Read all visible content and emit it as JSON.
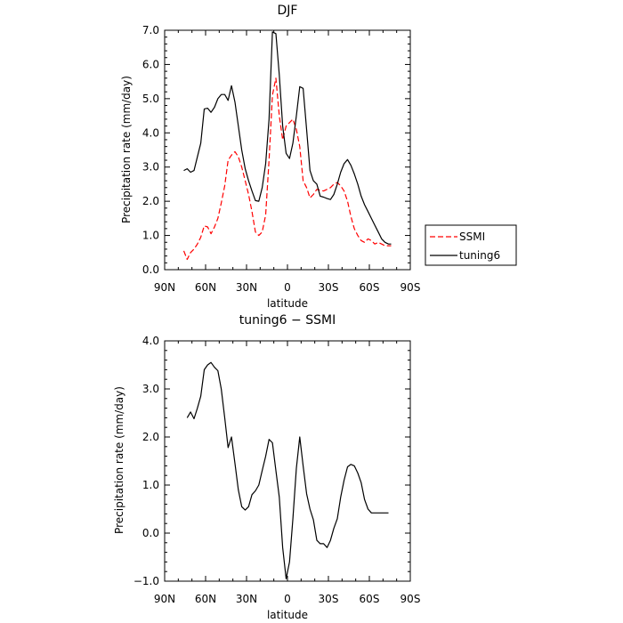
{
  "chart_data": [
    {
      "type": "line",
      "title": "DJF",
      "xlabel": "latitude",
      "ylabel": "Precipitation rate (mm/day)",
      "xlim": [
        90,
        -90
      ],
      "ylim": [
        0,
        7
      ],
      "xticks": [
        90,
        60,
        30,
        0,
        -30,
        -60,
        -90
      ],
      "xtick_labels": [
        "90N",
        "60N",
        "30N",
        "0",
        "30S",
        "60S",
        "90S"
      ],
      "yticks": [
        0,
        1,
        2,
        3,
        4,
        5,
        6,
        7
      ],
      "ytick_labels": [
        "0.0",
        "1.0",
        "2.0",
        "3.0",
        "4.0",
        "5.0",
        "6.0",
        "7.0"
      ],
      "legend_placement": "right-outside",
      "series": [
        {
          "name": "SSMI",
          "color": "#ff0000",
          "style": "dashed",
          "x": [
            76,
            73.5,
            71,
            68.5,
            66,
            63.5,
            61,
            58.5,
            56,
            53.5,
            51,
            48.5,
            46,
            43.5,
            41,
            38.5,
            36,
            33.5,
            31,
            28.5,
            26,
            23.5,
            21,
            18.5,
            16,
            13.5,
            11,
            8.5,
            6,
            3.5,
            1,
            -1.5,
            -4,
            -6.5,
            -9,
            -11.5,
            -14,
            -16.5,
            -19,
            -21.5,
            -24,
            -26.5,
            -29,
            -31.5,
            -34,
            -36.5,
            -39,
            -41.5,
            -44,
            -46.5,
            -49,
            -51.5,
            -54,
            -56.5,
            -59,
            -61.5,
            -64,
            -66.5,
            -69,
            -71.5,
            -74,
            -76
          ],
          "y": [
            0.55,
            0.3,
            0.5,
            0.6,
            0.75,
            0.95,
            1.28,
            1.25,
            1.05,
            1.25,
            1.5,
            1.95,
            2.45,
            3.2,
            3.35,
            3.45,
            3.3,
            3.0,
            2.6,
            2.2,
            1.7,
            1.1,
            1.0,
            1.1,
            1.6,
            3.2,
            5.1,
            5.6,
            4.5,
            3.8,
            4.2,
            4.3,
            4.4,
            4.1,
            3.6,
            2.6,
            2.4,
            2.1,
            2.2,
            2.35,
            2.32,
            2.3,
            2.35,
            2.4,
            2.5,
            2.55,
            2.45,
            2.3,
            2.0,
            1.55,
            1.2,
            1.0,
            0.85,
            0.8,
            0.9,
            0.85,
            0.75,
            0.8,
            0.75,
            0.7,
            0.7,
            0.7
          ]
        },
        {
          "name": "tuning6",
          "color": "#000000",
          "style": "solid",
          "x": [
            76,
            73.5,
            71,
            68.5,
            66,
            63.5,
            61,
            58.5,
            56,
            53.5,
            51,
            48.5,
            46,
            43.5,
            41,
            38.5,
            36,
            33.5,
            31,
            28.5,
            26,
            23.5,
            21,
            18.5,
            16,
            13.5,
            11,
            8.5,
            6,
            3.5,
            1,
            -1.5,
            -4,
            -6.5,
            -9,
            -11.5,
            -14,
            -16.5,
            -19,
            -21.5,
            -24,
            -26.5,
            -29,
            -31.5,
            -34,
            -36.5,
            -39,
            -41.5,
            -44,
            -46.5,
            -49,
            -51.5,
            -54,
            -56.5,
            -59,
            -61.5,
            -64,
            -66.5,
            -69,
            -71.5,
            -74,
            -76
          ],
          "y": [
            2.9,
            2.95,
            2.85,
            2.9,
            3.3,
            3.7,
            4.7,
            4.72,
            4.6,
            4.75,
            5.0,
            5.12,
            5.12,
            4.95,
            5.38,
            4.9,
            4.2,
            3.5,
            2.95,
            2.6,
            2.3,
            2.02,
            2.0,
            2.4,
            3.1,
            4.4,
            6.95,
            6.9,
            5.7,
            4.2,
            3.4,
            3.25,
            3.7,
            4.5,
            5.35,
            5.3,
            4.1,
            2.9,
            2.6,
            2.5,
            2.15,
            2.12,
            2.08,
            2.05,
            2.2,
            2.5,
            2.85,
            3.1,
            3.22,
            3.05,
            2.8,
            2.5,
            2.15,
            1.9,
            1.7,
            1.5,
            1.3,
            1.1,
            0.9,
            0.8,
            0.75,
            0.75
          ]
        }
      ]
    },
    {
      "type": "line",
      "title": "tuning6 − SSMI",
      "xlabel": "latitude",
      "ylabel": "Precipitation rate (mm/day)",
      "xlim": [
        90,
        -90
      ],
      "ylim": [
        -1,
        4
      ],
      "xticks": [
        90,
        60,
        30,
        0,
        -30,
        -60,
        -90
      ],
      "xtick_labels": [
        "90N",
        "60N",
        "30N",
        "0",
        "30S",
        "60S",
        "90S"
      ],
      "yticks": [
        -1,
        0,
        1,
        2,
        3,
        4
      ],
      "ytick_labels": [
        "−1.0",
        "0.0",
        "1.0",
        "2.0",
        "3.0",
        "4.0"
      ],
      "series": [
        {
          "color": "#000000",
          "style": "solid",
          "x": [
            73.5,
            71,
            68.5,
            66,
            63.5,
            61,
            58.5,
            56,
            53.5,
            51,
            48.5,
            46,
            43.5,
            41,
            38.5,
            36,
            33.5,
            31,
            28.5,
            26,
            23.5,
            21,
            18.5,
            16,
            13.5,
            11,
            8.5,
            6,
            3.5,
            1,
            -1.5,
            -4,
            -6.5,
            -9,
            -11.5,
            -14,
            -16.5,
            -19,
            -21.5,
            -24,
            -26.5,
            -29,
            -31.5,
            -34,
            -36.5,
            -39,
            -41.5,
            -44,
            -46.5,
            -49,
            -51.5,
            -54,
            -56.5,
            -59,
            -61.5,
            -64,
            -66.5,
            -69,
            -71.5,
            -74
          ],
          "y": [
            2.4,
            2.52,
            2.38,
            2.6,
            2.85,
            3.4,
            3.5,
            3.55,
            3.45,
            3.38,
            3.0,
            2.4,
            1.78,
            2.0,
            1.45,
            0.9,
            0.55,
            0.48,
            0.55,
            0.8,
            0.88,
            1.0,
            1.3,
            1.6,
            1.95,
            1.88,
            1.3,
            0.75,
            -0.3,
            -0.95,
            -0.6,
            0.3,
            1.35,
            2.0,
            1.4,
            0.82,
            0.5,
            0.28,
            -0.15,
            -0.22,
            -0.22,
            -0.3,
            -0.15,
            0.1,
            0.3,
            0.75,
            1.1,
            1.38,
            1.43,
            1.4,
            1.25,
            1.05,
            0.7,
            0.5,
            0.42,
            0.42,
            0.42,
            0.42,
            0.42,
            0.42
          ]
        }
      ]
    }
  ]
}
